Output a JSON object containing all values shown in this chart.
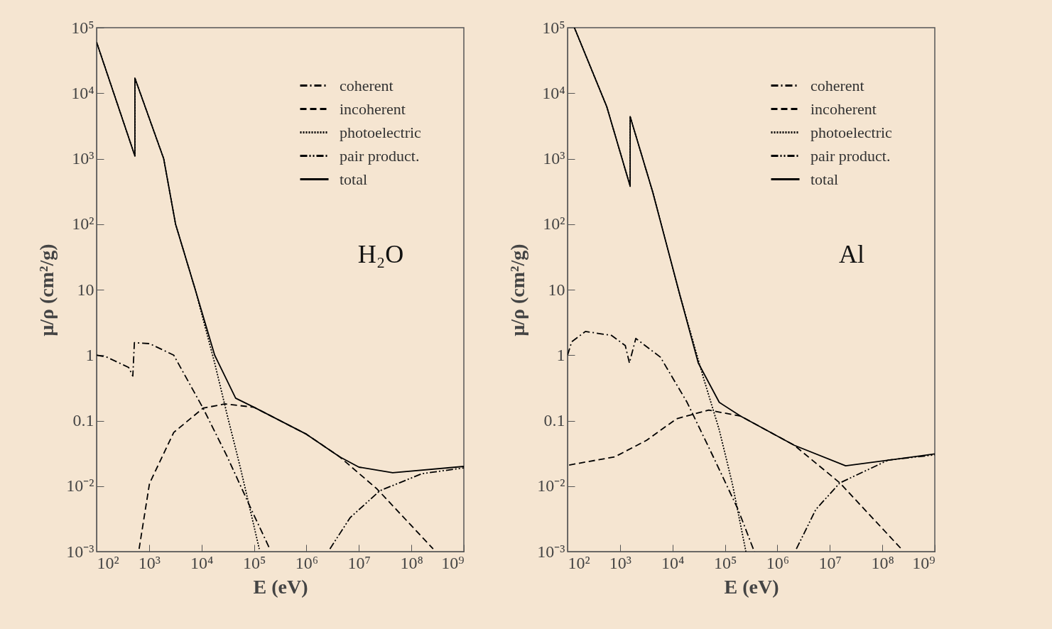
{
  "chart_data": [
    {
      "type": "line",
      "xlabel": "E (eV)",
      "ylabel": "μ/ρ (cm²/g)",
      "log": "xy",
      "legend": "top right",
      "annotations": [
        "H₂O"
      ],
      "xlim": [
        100,
        1000000000
      ],
      "ylim": [
        0.001,
        100000
      ],
      "xticks": [
        {
          "value": 100,
          "label": "10²"
        },
        {
          "value": 1000,
          "label": "10³"
        },
        {
          "value": 10000,
          "label": "10⁴"
        },
        {
          "value": 100000,
          "label": "10⁵"
        },
        {
          "value": 1000000,
          "label": "10⁶"
        },
        {
          "value": 10000000,
          "label": "10⁷"
        },
        {
          "value": 100000000,
          "label": "10⁸"
        },
        {
          "value": 1000000000,
          "label": "10⁹"
        }
      ],
      "yticks": [
        {
          "value": 0.001,
          "label": "10⁻³"
        },
        {
          "value": 0.01,
          "label": "10⁻²"
        },
        0.1,
        1,
        10,
        {
          "value": 100,
          "label": "10²"
        },
        {
          "value": 1000,
          "label": "10³"
        },
        {
          "value": 10000,
          "label": "10⁴"
        },
        {
          "value": 100000,
          "label": "10⁵"
        }
      ],
      "series": [
        {
          "name": "coherent",
          "color": "#000000",
          "line_style": "dashdot",
          "x": [
            100,
            158,
            407,
            490,
            525,
            1020,
            2950,
            10700,
            31000,
            89000,
            200000
          ],
          "values": [
            1.0,
            0.93,
            0.65,
            0.48,
            1.55,
            1.5,
            1.0,
            0.155,
            0.028,
            0.0044,
            0.0011
          ]
        },
        {
          "name": "incoherent",
          "color": "#000000",
          "line_style": "dashed",
          "x": [
            646,
            1020,
            2950,
            10700,
            28000,
            100000,
            1000000,
            4300000,
            22000000,
            260000000
          ],
          "values": [
            0.0011,
            0.011,
            0.066,
            0.155,
            0.18,
            0.16,
            0.062,
            0.028,
            0.0091,
            0.0011
          ]
        },
        {
          "name": "photoelectric",
          "color": "#000000",
          "line_style": "dotted",
          "x": [
            100,
            537,
            537,
            1900,
            3200,
            7600,
            17800,
            31000,
            56000,
            126000
          ],
          "values": [
            60000,
            1100,
            17000,
            1000,
            100,
            10,
            0.76,
            0.12,
            0.018,
            0.0011
          ]
        },
        {
          "name": "pair product.",
          "color": "#000000",
          "line_style": "dashdotdot",
          "x": [
            2800000,
            6800000,
            25000000,
            160000000,
            1000000000
          ],
          "values": [
            0.0011,
            0.0033,
            0.0085,
            0.0155,
            0.019
          ]
        },
        {
          "name": "total",
          "color": "#000000",
          "line_style": "solid",
          "x": [
            100,
            537,
            537,
            1900,
            3200,
            7600,
            17800,
            44700,
            100000,
            1000000,
            4300000,
            10000000,
            44000000,
            1000000000
          ],
          "values": [
            60000,
            1100,
            17000,
            1000,
            100,
            10,
            1.0,
            0.22,
            0.16,
            0.062,
            0.028,
            0.0195,
            0.016,
            0.02
          ]
        }
      ]
    },
    {
      "type": "line",
      "xlabel": "E (eV)",
      "ylabel": "μ/ρ (cm²/g)",
      "log": "xy",
      "legend": "top right",
      "annotations": [
        "Al"
      ],
      "xlim": [
        100,
        1000000000
      ],
      "ylim": [
        0.001,
        100000
      ],
      "xticks": [
        {
          "value": 100,
          "label": "10²"
        },
        {
          "value": 1000,
          "label": "10³"
        },
        {
          "value": 10000,
          "label": "10⁴"
        },
        {
          "value": 100000,
          "label": "10⁵"
        },
        {
          "value": 1000000,
          "label": "10⁶"
        },
        {
          "value": 10000000,
          "label": "10⁷"
        },
        {
          "value": 100000000,
          "label": "10⁸"
        },
        {
          "value": 1000000000,
          "label": "10⁹"
        }
      ],
      "yticks": [
        {
          "value": 0.001,
          "label": "10⁻³"
        },
        {
          "value": 0.01,
          "label": "10⁻²"
        },
        0.1,
        1,
        10,
        {
          "value": 100,
          "label": "10²"
        },
        {
          "value": 1000,
          "label": "10³"
        },
        {
          "value": 10000,
          "label": "10⁴"
        },
        {
          "value": 100000,
          "label": "10⁵"
        }
      ],
      "series": [
        {
          "name": "coherent",
          "color": "#000000",
          "line_style": "dashdot",
          "x": [
            100,
            120,
            219,
            690,
            1260,
            1510,
            2000,
            5900,
            19000,
            60000,
            178000,
            363000
          ],
          "values": [
            1.0,
            1.6,
            2.3,
            2.0,
            1.4,
            0.76,
            1.8,
            0.93,
            0.19,
            0.028,
            0.0044,
            0.001
          ]
        },
        {
          "name": "incoherent",
          "color": "#000000",
          "line_style": "dashed",
          "x": [
            107,
            794,
            3200,
            12000,
            49000,
            200000,
            2100000,
            15500000,
            230000000
          ],
          "values": [
            0.021,
            0.028,
            0.05,
            0.107,
            0.145,
            0.117,
            0.042,
            0.0112,
            0.0011
          ]
        },
        {
          "name": "photoelectric",
          "color": "#000000",
          "line_style": "dotted",
          "x": [
            135,
            560,
            1560,
            1560,
            4200,
            14000,
            38000,
            78000,
            138000,
            251000
          ],
          "values": [
            100000,
            6200,
            380,
            4400,
            310,
            8,
            0.48,
            0.072,
            0.011,
            0.001
          ]
        },
        {
          "name": "pair product.",
          "color": "#000000",
          "line_style": "dashdotdot",
          "x": [
            2300000,
            5400000,
            15500000,
            130000000,
            1000000000
          ],
          "values": [
            0.0011,
            0.0044,
            0.0112,
            0.025,
            0.03
          ]
        },
        {
          "name": "total",
          "color": "#000000",
          "line_style": "solid",
          "x": [
            135,
            560,
            1560,
            1560,
            4200,
            14000,
            31000,
            78000,
            200000,
            2100000,
            20000000,
            1000000000
          ],
          "values": [
            100000,
            6200,
            380,
            4400,
            310,
            8,
            0.76,
            0.19,
            0.117,
            0.042,
            0.0204,
            0.031
          ]
        }
      ]
    }
  ]
}
